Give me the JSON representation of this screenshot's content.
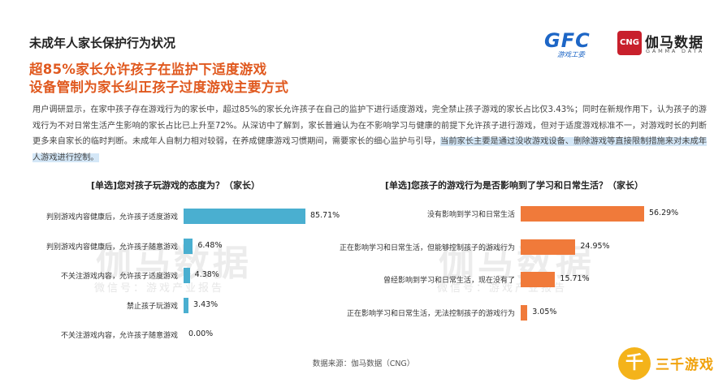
{
  "header": {
    "title": "未成年人家长保护行为状况",
    "headline_line1": "超85%家长允许孩子在监护下适度游戏",
    "headline_line2": "设备管制为家长纠正孩子过度游戏主要方式"
  },
  "logos": {
    "gfc_text": "GFC",
    "gfc_sub": "游戏工委",
    "cng_badge": "CNG",
    "cng_name": "伽马数据",
    "cng_en": "GAMMA DATA",
    "corner_mark": "千",
    "corner_text": "三千游戏"
  },
  "paragraph": {
    "normal": "用户调研显示，在家中孩子存在游戏行为的家长中，超过85%的家长允许孩子在自己的监护下进行适度游戏，完全禁止孩子游戏的家长占比仅3.43%；同时在新规作用下，认为孩子的游戏行为不对日常生活产生影响的家长占比已上升至72%。从深访中了解到，家长普遍认为在不影响学习与健康的前提下允许孩子进行游戏，但对于适度游戏标准不一，对游戏时长的判断更多来自家长的临时判断。未成年人自制力相对较弱，在养成健康游戏习惯期间，需要家长的细心监护与引导，",
    "highlight": "当前家长主要是通过没收游戏设备、删除游戏等直接限制措施来对未成年人游戏进行控制。"
  },
  "chart_data": [
    {
      "type": "bar",
      "orientation": "horizontal",
      "title": "[单选]您对孩子玩游戏的态度为？（家长）",
      "categories": [
        "判别游戏内容健康后，允许孩子适度游戏",
        "判别游戏内容健康后，允许孩子随意游戏",
        "不关注游戏内容，允许孩子适度游戏",
        "禁止孩子玩游戏",
        "不关注游戏内容，允许孩子随意游戏"
      ],
      "values": [
        85.71,
        6.48,
        4.38,
        3.43,
        0.0
      ],
      "value_labels": [
        "85.71%",
        "6.48%",
        "4.38%",
        "3.43%",
        "0.00%"
      ],
      "unit": "%",
      "xlim": [
        0,
        100
      ],
      "color": "#4aafd0",
      "grid": false
    },
    {
      "type": "bar",
      "orientation": "horizontal",
      "title": "[单选]您孩子的游戏行为是否影响到了学习和日常生活？（家长）",
      "categories": [
        "没有影响到学习和日常生活",
        "正在影响学习和日常生活，但能够控制孩子的游戏行为",
        "曾经影响到学习和日常生活，现在没有了",
        "正在影响学习和日常生活，无法控制孩子的游戏行为"
      ],
      "values": [
        56.29,
        24.95,
        15.71,
        3.05
      ],
      "value_labels": [
        "56.29%",
        "24.95%",
        "15.71%",
        "3.05%"
      ],
      "unit": "%",
      "xlim": [
        0,
        60
      ],
      "color": "#f07a3a",
      "grid": false
    }
  ],
  "watermark": {
    "big": "伽马数据",
    "small": "微信号：游戏产业报告"
  },
  "source": "数据来源：伽马数据（CNG）"
}
